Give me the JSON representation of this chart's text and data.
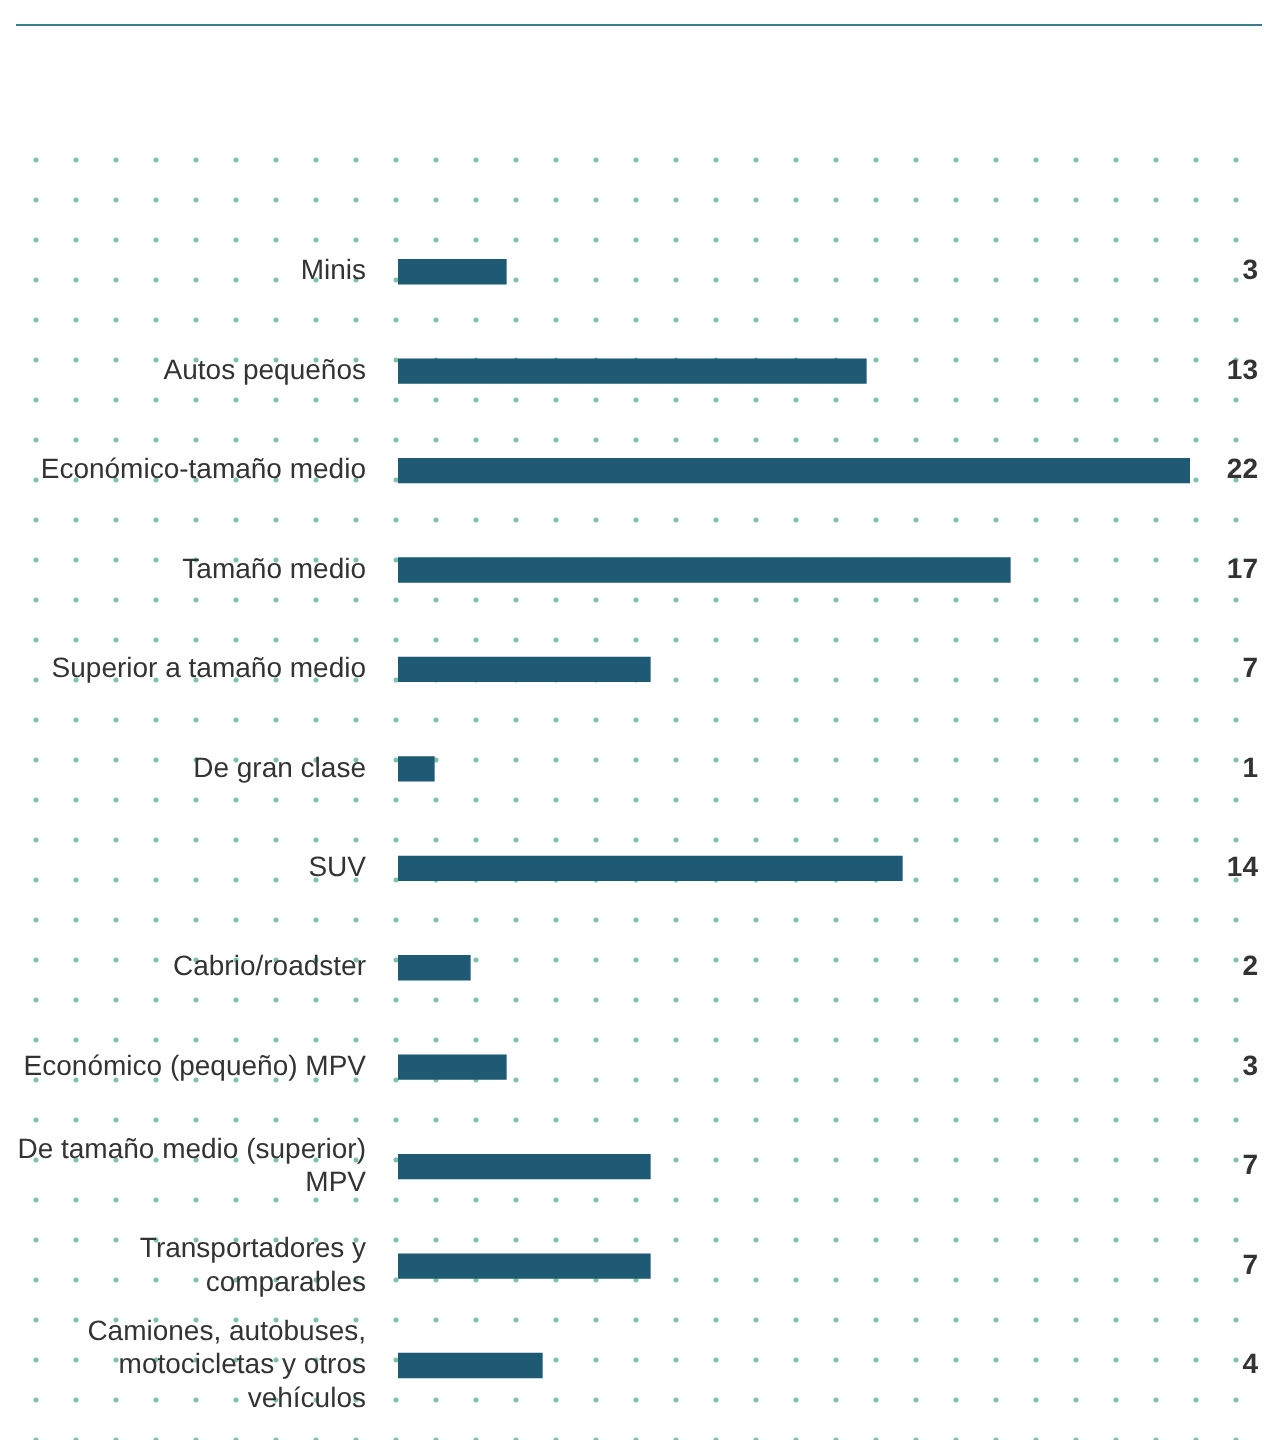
{
  "chart_data": {
    "type": "bar",
    "orientation": "horizontal",
    "categories": [
      "Minis",
      "Autos pequeños",
      "Económico-tamaño medio",
      "Tamaño medio",
      "Superior a tamaño medio",
      "De gran clase",
      "SUV",
      "Cabrio/roadster",
      "Económico (pequeño) MPV",
      "De tamaño medio (superior) MPV",
      "Transportadores y comparables",
      "Camiones, autobuses, motocicletas y otros vehículos"
    ],
    "values": [
      3,
      13,
      22,
      17,
      7,
      1,
      14,
      2,
      3,
      7,
      7,
      4
    ],
    "color": "#1e5a73",
    "data_labels": true
  }
}
